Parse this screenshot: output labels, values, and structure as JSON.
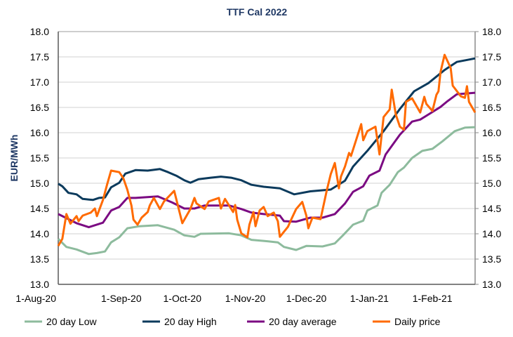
{
  "chart_data": {
    "type": "line",
    "title": "TTF Cal 2022",
    "ylabel": "EUR/MWh",
    "ylim": [
      13.0,
      18.0
    ],
    "yticks": [
      "13.0",
      "13.5",
      "14.0",
      "14.5",
      "15.0",
      "15.5",
      "16.0",
      "16.5",
      "17.0",
      "17.5",
      "18.0"
    ],
    "secondary_yticks": [
      "13.0",
      "13.5",
      "14.0",
      "14.5",
      "15.0",
      "15.5",
      "16.0",
      "16.5",
      "17.0",
      "17.5",
      "18.0"
    ],
    "xlim": [
      "2020-08-01",
      "2021-02-22"
    ],
    "xticks": [
      {
        "date": "2020-08-01",
        "label": "1-Aug-20"
      },
      {
        "date": "2020-09-01",
        "label": "1-Sep-20"
      },
      {
        "date": "2020-10-01",
        "label": "1-Oct-20"
      },
      {
        "date": "2020-11-01",
        "label": "1-Nov-20"
      },
      {
        "date": "2020-12-01",
        "label": "1-Dec-20"
      },
      {
        "date": "2021-01-01",
        "label": "1-Jan-21"
      },
      {
        "date": "2021-02-01",
        "label": "1-Feb-21"
      }
    ],
    "grid": "horizontal",
    "legend": "bottom",
    "series": [
      {
        "name": "20 day Low",
        "color": "#8dbb9d",
        "points": [
          [
            "2020-08-01",
            13.9
          ],
          [
            "2020-08-05",
            13.74
          ],
          [
            "2020-08-10",
            13.69
          ],
          [
            "2020-08-16",
            13.6
          ],
          [
            "2020-08-20",
            13.62
          ],
          [
            "2020-08-24",
            13.65
          ],
          [
            "2020-08-27",
            13.83
          ],
          [
            "2020-08-31",
            13.93
          ],
          [
            "2020-09-04",
            14.11
          ],
          [
            "2020-09-10",
            14.15
          ],
          [
            "2020-09-19",
            14.17
          ],
          [
            "2020-09-27",
            14.08
          ],
          [
            "2020-10-02",
            13.97
          ],
          [
            "2020-10-07",
            13.94
          ],
          [
            "2020-10-10",
            14.0
          ],
          [
            "2020-10-24",
            14.01
          ],
          [
            "2020-10-30",
            13.97
          ],
          [
            "2020-11-04",
            13.88
          ],
          [
            "2020-11-10",
            13.86
          ],
          [
            "2020-11-17",
            13.83
          ],
          [
            "2020-11-20",
            13.74
          ],
          [
            "2020-11-26",
            13.68
          ],
          [
            "2020-12-01",
            13.76
          ],
          [
            "2020-12-09",
            13.75
          ],
          [
            "2020-12-15",
            13.81
          ],
          [
            "2020-12-19",
            13.97
          ],
          [
            "2020-12-24",
            14.18
          ],
          [
            "2020-12-29",
            14.26
          ],
          [
            "2020-12-31",
            14.46
          ],
          [
            "2021-01-05",
            14.56
          ],
          [
            "2021-01-07",
            14.81
          ],
          [
            "2021-01-11",
            14.97
          ],
          [
            "2021-01-15",
            15.22
          ],
          [
            "2021-01-18",
            15.31
          ],
          [
            "2021-01-22",
            15.5
          ],
          [
            "2021-01-27",
            15.64
          ],
          [
            "2021-02-01",
            15.68
          ],
          [
            "2021-02-06",
            15.83
          ],
          [
            "2021-02-12",
            16.03
          ],
          [
            "2021-02-17",
            16.1
          ],
          [
            "2021-02-22",
            16.11
          ]
        ]
      },
      {
        "name": "20 day High",
        "color": "#0b3a5c",
        "points": [
          [
            "2020-08-01",
            14.99
          ],
          [
            "2020-08-03",
            14.94
          ],
          [
            "2020-08-06",
            14.81
          ],
          [
            "2020-08-10",
            14.78
          ],
          [
            "2020-08-13",
            14.69
          ],
          [
            "2020-08-18",
            14.67
          ],
          [
            "2020-08-21",
            14.71
          ],
          [
            "2020-08-24",
            14.72
          ],
          [
            "2020-08-27",
            14.92
          ],
          [
            "2020-08-31",
            15.01
          ],
          [
            "2020-09-03",
            15.19
          ],
          [
            "2020-09-08",
            15.26
          ],
          [
            "2020-09-14",
            15.25
          ],
          [
            "2020-09-20",
            15.28
          ],
          [
            "2020-09-24",
            15.22
          ],
          [
            "2020-09-28",
            15.15
          ],
          [
            "2020-10-02",
            15.06
          ],
          [
            "2020-10-05",
            15.01
          ],
          [
            "2020-10-09",
            15.08
          ],
          [
            "2020-10-15",
            15.11
          ],
          [
            "2020-10-20",
            15.13
          ],
          [
            "2020-10-25",
            15.11
          ],
          [
            "2020-10-30",
            15.06
          ],
          [
            "2020-11-04",
            14.97
          ],
          [
            "2020-11-10",
            14.93
          ],
          [
            "2020-11-18",
            14.9
          ],
          [
            "2020-11-25",
            14.78
          ],
          [
            "2020-12-03",
            14.84
          ],
          [
            "2020-12-13",
            14.875
          ],
          [
            "2020-12-20",
            15.05
          ],
          [
            "2020-12-24",
            15.33
          ],
          [
            "2020-12-31",
            15.64
          ],
          [
            "2021-01-08",
            16.03
          ],
          [
            "2021-01-16",
            16.47
          ],
          [
            "2021-01-23",
            16.82
          ],
          [
            "2021-01-30",
            16.98
          ],
          [
            "2021-02-07",
            17.24
          ],
          [
            "2021-02-13",
            17.4
          ],
          [
            "2021-02-22",
            17.47
          ]
        ]
      },
      {
        "name": "20 day average",
        "color": "#7b0a82",
        "points": [
          [
            "2020-08-01",
            14.39
          ],
          [
            "2020-08-10",
            14.21
          ],
          [
            "2020-08-16",
            14.13
          ],
          [
            "2020-08-23",
            14.22
          ],
          [
            "2020-08-27",
            14.46
          ],
          [
            "2020-08-31",
            14.53
          ],
          [
            "2020-09-04",
            14.71
          ],
          [
            "2020-09-08",
            14.71
          ],
          [
            "2020-09-19",
            14.74
          ],
          [
            "2020-09-26",
            14.62
          ],
          [
            "2020-10-02",
            14.5
          ],
          [
            "2020-10-07",
            14.5
          ],
          [
            "2020-10-12",
            14.56
          ],
          [
            "2020-10-24",
            14.56
          ],
          [
            "2020-10-30",
            14.49
          ],
          [
            "2020-11-04",
            14.42
          ],
          [
            "2020-11-10",
            14.39
          ],
          [
            "2020-11-18",
            14.36
          ],
          [
            "2020-11-20",
            14.25
          ],
          [
            "2020-11-26",
            14.24
          ],
          [
            "2020-12-03",
            14.32
          ],
          [
            "2020-12-09",
            14.32
          ],
          [
            "2020-12-15",
            14.39
          ],
          [
            "2020-12-20",
            14.6
          ],
          [
            "2020-12-24",
            14.83
          ],
          [
            "2020-12-29",
            14.94
          ],
          [
            "2021-01-01",
            15.15
          ],
          [
            "2021-01-06",
            15.25
          ],
          [
            "2021-01-09",
            15.57
          ],
          [
            "2021-01-16",
            15.96
          ],
          [
            "2021-01-22",
            16.22
          ],
          [
            "2021-01-26",
            16.26
          ],
          [
            "2021-01-30",
            16.36
          ],
          [
            "2021-02-05",
            16.51
          ],
          [
            "2021-02-08",
            16.61
          ],
          [
            "2021-02-13",
            16.76
          ],
          [
            "2021-02-22",
            16.79
          ]
        ]
      },
      {
        "name": "Daily price",
        "color": "#ff6a00",
        "points": [
          [
            "2020-08-01",
            13.76
          ],
          [
            "2020-08-03",
            13.9
          ],
          [
            "2020-08-05",
            14.39
          ],
          [
            "2020-08-07",
            14.2
          ],
          [
            "2020-08-10",
            14.35
          ],
          [
            "2020-08-11",
            14.25
          ],
          [
            "2020-08-13",
            14.36
          ],
          [
            "2020-08-17",
            14.42
          ],
          [
            "2020-08-19",
            14.5
          ],
          [
            "2020-08-20",
            14.35
          ],
          [
            "2020-08-23",
            14.67
          ],
          [
            "2020-08-25",
            14.97
          ],
          [
            "2020-08-27",
            15.25
          ],
          [
            "2020-08-31",
            15.22
          ],
          [
            "2020-09-02",
            15.1
          ],
          [
            "2020-09-04",
            14.87
          ],
          [
            "2020-09-06",
            14.56
          ],
          [
            "2020-09-07",
            14.28
          ],
          [
            "2020-09-09",
            14.18
          ],
          [
            "2020-09-11",
            14.32
          ],
          [
            "2020-09-14",
            14.43
          ],
          [
            "2020-09-15",
            14.56
          ],
          [
            "2020-09-17",
            14.71
          ],
          [
            "2020-09-20",
            14.49
          ],
          [
            "2020-09-22",
            14.64
          ],
          [
            "2020-09-27",
            14.85
          ],
          [
            "2020-10-01",
            14.21
          ],
          [
            "2020-10-05",
            14.49
          ],
          [
            "2020-10-07",
            14.71
          ],
          [
            "2020-10-08",
            14.6
          ],
          [
            "2020-10-12",
            14.49
          ],
          [
            "2020-10-14",
            14.64
          ],
          [
            "2020-10-19",
            14.71
          ],
          [
            "2020-10-20",
            14.5
          ],
          [
            "2020-10-22",
            14.69
          ],
          [
            "2020-10-26",
            14.43
          ],
          [
            "2020-10-27",
            14.57
          ],
          [
            "2020-10-28",
            14.28
          ],
          [
            "2020-10-30",
            14.01
          ],
          [
            "2020-11-02",
            13.93
          ],
          [
            "2020-11-03",
            14.18
          ],
          [
            "2020-11-05",
            14.43
          ],
          [
            "2020-11-06",
            14.15
          ],
          [
            "2020-11-08",
            14.46
          ],
          [
            "2020-11-10",
            14.53
          ],
          [
            "2020-11-12",
            14.35
          ],
          [
            "2020-11-15",
            14.42
          ],
          [
            "2020-11-17",
            14.25
          ],
          [
            "2020-11-18",
            13.94
          ],
          [
            "2020-11-22",
            14.14
          ],
          [
            "2020-11-24",
            14.32
          ],
          [
            "2020-11-26",
            14.49
          ],
          [
            "2020-11-29",
            14.63
          ],
          [
            "2020-12-01",
            14.36
          ],
          [
            "2020-12-02",
            14.11
          ],
          [
            "2020-12-04",
            14.32
          ],
          [
            "2020-12-08",
            14.29
          ],
          [
            "2020-12-11",
            14.85
          ],
          [
            "2020-12-13",
            15.18
          ],
          [
            "2020-12-15",
            15.4
          ],
          [
            "2020-12-17",
            14.9
          ],
          [
            "2020-12-18",
            15.13
          ],
          [
            "2020-12-20",
            15.33
          ],
          [
            "2020-12-22",
            15.6
          ],
          [
            "2020-12-23",
            15.54
          ],
          [
            "2020-12-28",
            16.17
          ],
          [
            "2020-12-29",
            15.85
          ],
          [
            "2020-12-31",
            16.03
          ],
          [
            "2021-01-04",
            16.12
          ],
          [
            "2021-01-06",
            15.57
          ],
          [
            "2021-01-08",
            16.31
          ],
          [
            "2021-01-11",
            16.46
          ],
          [
            "2021-01-12",
            16.85
          ],
          [
            "2021-01-14",
            16.36
          ],
          [
            "2021-01-16",
            16.12
          ],
          [
            "2021-01-18",
            16.06
          ],
          [
            "2021-01-19",
            16.61
          ],
          [
            "2021-01-22",
            16.68
          ],
          [
            "2021-01-26",
            16.4
          ],
          [
            "2021-01-28",
            16.71
          ],
          [
            "2021-01-29",
            16.57
          ],
          [
            "2021-02-01",
            16.43
          ],
          [
            "2021-02-03",
            16.75
          ],
          [
            "2021-02-04",
            16.82
          ],
          [
            "2021-02-05",
            17.2
          ],
          [
            "2021-02-07",
            17.54
          ],
          [
            "2021-02-10",
            17.28
          ],
          [
            "2021-02-11",
            16.93
          ],
          [
            "2021-02-15",
            16.72
          ],
          [
            "2021-02-17",
            16.69
          ],
          [
            "2021-02-18",
            16.92
          ],
          [
            "2021-02-19",
            16.61
          ],
          [
            "2021-02-22",
            16.4
          ]
        ]
      }
    ]
  }
}
